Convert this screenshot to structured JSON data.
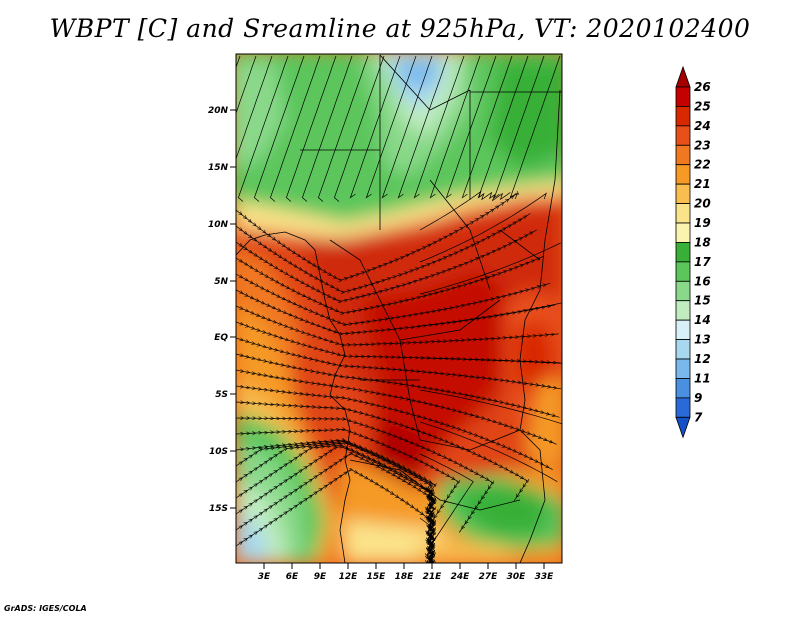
{
  "title": "WBPT [C] and Sreamline at 925hPa, VT: 2020102400",
  "credit": "GrADS: IGES/COLA",
  "map": {
    "variable": "Wet-bulb potential temperature",
    "units": "C",
    "level": "925hPa",
    "valid_time": "2020102400",
    "lon_labels": [
      "3E",
      "6E",
      "9E",
      "12E",
      "15E",
      "18E",
      "21E",
      "24E",
      "27E",
      "30E",
      "33E"
    ],
    "lat_labels": [
      "20N",
      "15N",
      "10N",
      "5N",
      "EQ",
      "5S",
      "10S",
      "15S"
    ]
  },
  "colorbar": {
    "levels": [
      "26",
      "25",
      "24",
      "23",
      "22",
      "21",
      "20",
      "19",
      "18",
      "17",
      "16",
      "15",
      "14",
      "13",
      "12",
      "11",
      "9",
      "7"
    ],
    "colors": [
      "#a50000",
      "#c40000",
      "#d82800",
      "#e8501a",
      "#f07820",
      "#f59a25",
      "#f8be50",
      "#fbe38a",
      "#fbf4b0",
      "#38b038",
      "#5cc65c",
      "#8ad98a",
      "#c0ecc0",
      "#d8f0f8",
      "#a8d8f0",
      "#78b8ec",
      "#4a90e0",
      "#2a6ad8",
      "#1450c8"
    ]
  }
}
